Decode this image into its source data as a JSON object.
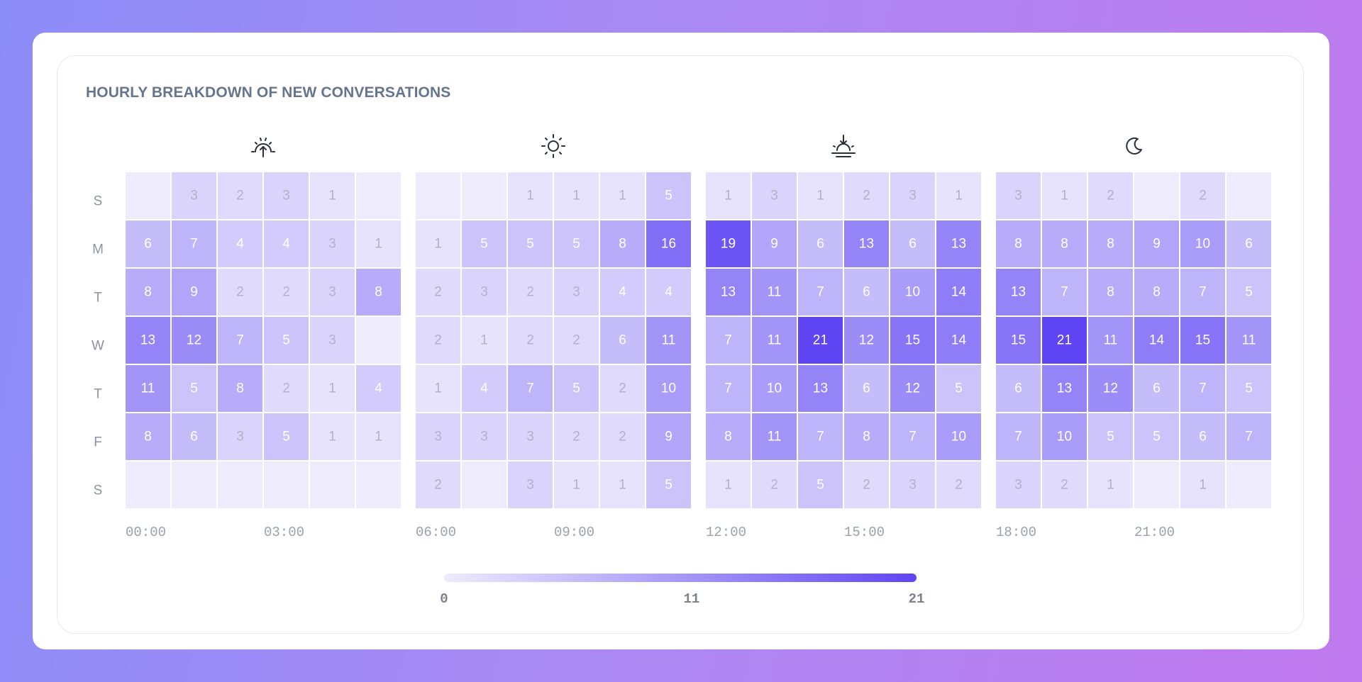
{
  "colors": {
    "scale_low": "#eeebfd",
    "scale_high": "#5f45f4",
    "text_dark": "#ffffff",
    "text_light": "#b5b0c6"
  },
  "period_icons": [
    "sunrise-icon",
    "sun-icon",
    "sunset-icon",
    "moon-icon"
  ],
  "chart_data": {
    "type": "heatmap",
    "title": "HOURLY BREAKDOWN OF NEW CONVERSATIONS",
    "rows": [
      "S",
      "M",
      "T",
      "W",
      "T",
      "F",
      "S"
    ],
    "columns": [
      "00",
      "01",
      "02",
      "03",
      "04",
      "05",
      "06",
      "07",
      "08",
      "09",
      "10",
      "11",
      "12",
      "13",
      "14",
      "15",
      "16",
      "17",
      "18",
      "19",
      "20",
      "21",
      "22",
      "23"
    ],
    "x_tick_labels": [
      "00:00",
      "03:00",
      "06:00",
      "09:00",
      "12:00",
      "15:00",
      "18:00",
      "21:00"
    ],
    "values": [
      [
        0,
        3,
        2,
        3,
        1,
        0,
        0,
        0,
        1,
        1,
        1,
        5,
        1,
        3,
        1,
        2,
        3,
        1,
        3,
        1,
        2,
        0,
        2,
        0
      ],
      [
        6,
        7,
        4,
        4,
        3,
        1,
        1,
        5,
        5,
        5,
        8,
        16,
        19,
        9,
        6,
        13,
        6,
        13,
        8,
        8,
        8,
        9,
        10,
        6
      ],
      [
        8,
        9,
        2,
        2,
        3,
        8,
        2,
        3,
        2,
        3,
        4,
        4,
        13,
        11,
        7,
        6,
        10,
        14,
        13,
        7,
        8,
        8,
        7,
        5
      ],
      [
        13,
        12,
        7,
        5,
        3,
        0,
        2,
        1,
        2,
        2,
        6,
        11,
        7,
        11,
        21,
        12,
        15,
        14,
        15,
        21,
        11,
        14,
        15,
        11
      ],
      [
        11,
        5,
        8,
        2,
        1,
        4,
        1,
        4,
        7,
        5,
        2,
        10,
        7,
        10,
        13,
        6,
        12,
        5,
        6,
        13,
        12,
        6,
        7,
        5
      ],
      [
        8,
        6,
        3,
        5,
        1,
        1,
        3,
        3,
        3,
        2,
        2,
        9,
        8,
        11,
        7,
        8,
        7,
        10,
        7,
        10,
        5,
        5,
        6,
        7
      ],
      [
        0,
        0,
        0,
        0,
        0,
        0,
        2,
        0,
        3,
        1,
        1,
        5,
        1,
        2,
        5,
        2,
        3,
        2,
        3,
        2,
        1,
        0,
        1,
        0
      ]
    ],
    "range": [
      0,
      21
    ],
    "legend": {
      "min_label": "0",
      "mid_label": "11",
      "max_label": "21"
    }
  }
}
